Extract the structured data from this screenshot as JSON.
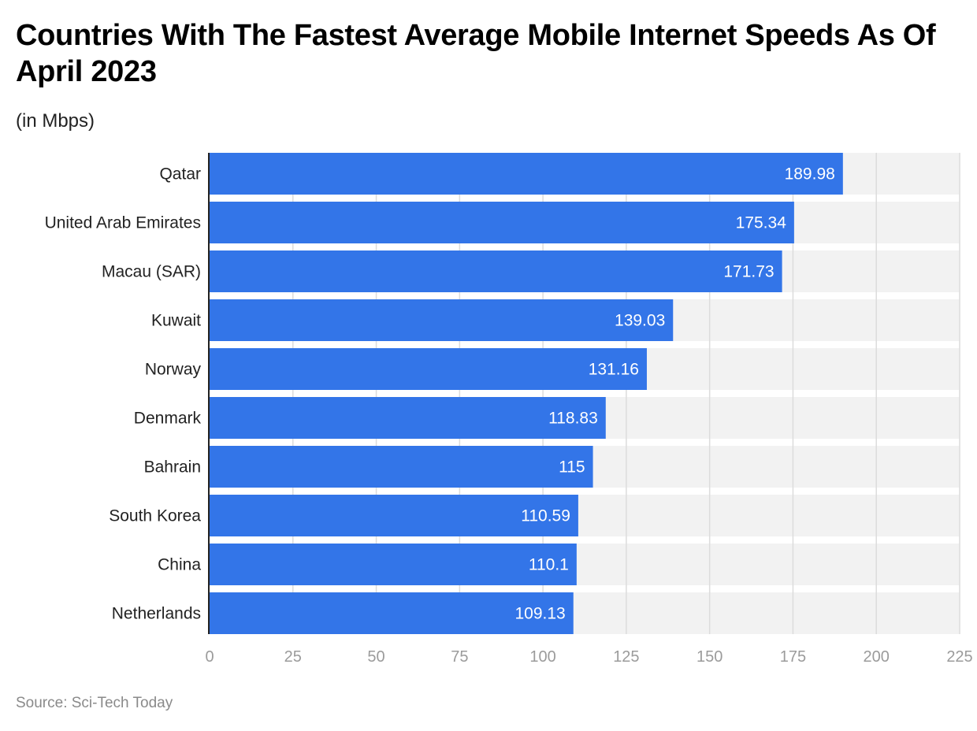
{
  "chart_data": {
    "type": "bar",
    "orientation": "horizontal",
    "title": "Countries With The Fastest Average Mobile Internet Speeds As Of April 2023",
    "subtitle": "(in Mbps)",
    "xlabel": "",
    "ylabel": "",
    "categories": [
      "Qatar",
      "United Arab Emirates",
      "Macau (SAR)",
      "Kuwait",
      "Norway",
      "Denmark",
      "Bahrain",
      "South Korea",
      "China",
      "Netherlands"
    ],
    "values": [
      189.98,
      175.34,
      171.73,
      139.03,
      131.16,
      118.83,
      115,
      110.59,
      110.1,
      109.13
    ],
    "value_labels": [
      "189.98",
      "175.34",
      "171.73",
      "139.03",
      "131.16",
      "118.83",
      "115",
      "110.59",
      "110.1",
      "109.13"
    ],
    "xlim": [
      0,
      225
    ],
    "xticks": [
      0,
      25,
      50,
      75,
      100,
      125,
      150,
      175,
      200,
      225
    ],
    "grid": true,
    "legend": "none",
    "colors": {
      "bar": "#3375e8",
      "track": "#f2f2f2",
      "grid": "#dcdcdc",
      "axis": "#222222",
      "tick_label": "#9b9b9b",
      "value_label": "#ffffff"
    }
  },
  "source": "Source: Sci-Tech Today"
}
